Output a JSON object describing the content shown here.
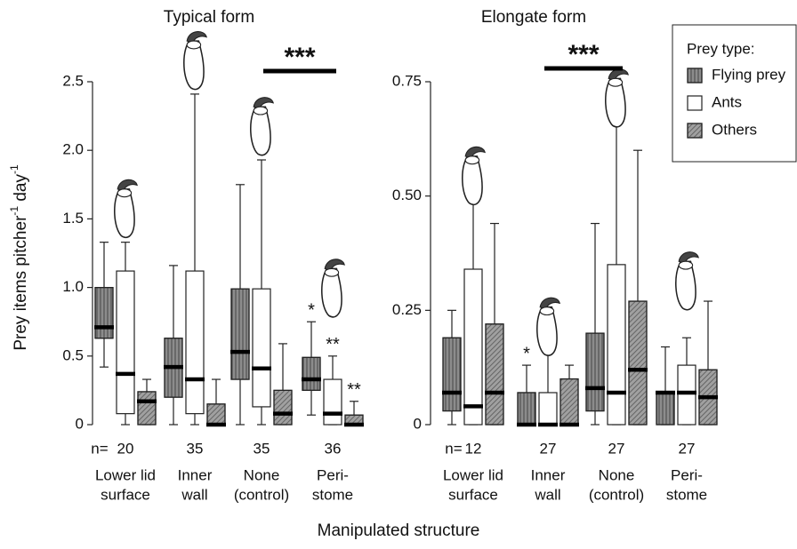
{
  "xlabel": "Manipulated structure",
  "ylabel": [
    "Prey items pitcher",
    "-1",
    " day",
    "-1"
  ],
  "legend": {
    "title": "Prey type:",
    "series": [
      {
        "name": "Flying prey",
        "color": "#8c8c8c",
        "pattern": "vertical"
      },
      {
        "name": "Ants",
        "color": "#ffffff",
        "pattern": "none"
      },
      {
        "name": "Others",
        "color": "#a0a0a0",
        "pattern": "diagonal"
      }
    ]
  },
  "chart_data": [
    {
      "type": "box",
      "title": "Typical form",
      "n_label": "n=",
      "n": [
        20,
        35,
        35,
        36
      ],
      "categories": [
        [
          "Lower lid",
          "surface"
        ],
        [
          "Inner",
          "wall"
        ],
        [
          "None",
          "(control)"
        ],
        [
          "Peri-",
          "stome"
        ]
      ],
      "ylim": [
        0,
        2.5
      ],
      "yticks": [
        0,
        0.5,
        {
          "value": 1,
          "label": "1.0"
        },
        1.5,
        {
          "value": 2,
          "label": "2.0"
        },
        2.5
      ],
      "significance": "***",
      "series": [
        {
          "boxes": [
            {
              "min": 0.42,
              "q1": 0.63,
              "median": 0.71,
              "q3": 1.0,
              "max": 1.33
            },
            {
              "min": 0,
              "q1": 0.2,
              "median": 0.42,
              "q3": 0.63,
              "max": 1.16
            },
            {
              "min": 0,
              "q1": 0.33,
              "median": 0.53,
              "q3": 0.99,
              "max": 1.75
            },
            {
              "min": 0.07,
              "q1": 0.25,
              "median": 0.33,
              "q3": 0.49,
              "max": 0.75
            }
          ],
          "marks": [
            null,
            null,
            null,
            "*"
          ]
        },
        {
          "boxes": [
            {
              "min": 0,
              "q1": 0.08,
              "median": 0.37,
              "q3": 1.12,
              "max": 1.33
            },
            {
              "min": 0,
              "q1": 0.08,
              "median": 0.33,
              "q3": 1.12,
              "max": 2.41
            },
            {
              "min": 0,
              "q1": 0.13,
              "median": 0.41,
              "q3": 0.99,
              "max": 1.93
            },
            {
              "min": 0,
              "q1": 0,
              "median": 0.08,
              "q3": 0.33,
              "max": 0.5
            }
          ],
          "marks": [
            null,
            null,
            null,
            "**"
          ]
        },
        {
          "boxes": [
            {
              "min": 0,
              "q1": 0,
              "median": 0.17,
              "q3": 0.24,
              "max": 0.33
            },
            {
              "min": 0,
              "q1": 0,
              "median": 0,
              "q3": 0.15,
              "max": 0.33
            },
            {
              "min": 0,
              "q1": 0,
              "median": 0.08,
              "q3": 0.25,
              "max": 0.59
            },
            {
              "min": 0,
              "q1": 0,
              "median": 0,
              "q3": 0.07,
              "max": 0.17
            }
          ],
          "marks": [
            null,
            null,
            null,
            "**"
          ]
        }
      ]
    },
    {
      "type": "box",
      "title": "Elongate form",
      "n_label": "n=",
      "n": [
        12,
        27,
        27,
        27
      ],
      "categories": [
        [
          "Lower lid",
          "surface"
        ],
        [
          "Inner",
          "wall"
        ],
        [
          "None",
          "(control)"
        ],
        [
          "Peri-",
          "stome"
        ]
      ],
      "ylim": [
        0,
        0.75
      ],
      "yticks": [
        0,
        0.25,
        {
          "value": 0.5,
          "label": "0.50"
        },
        0.75
      ],
      "significance": "***",
      "series": [
        {
          "boxes": [
            {
              "min": 0,
              "q1": 0.03,
              "median": 0.07,
              "q3": 0.19,
              "max": 0.25
            },
            {
              "min": 0,
              "q1": 0,
              "median": 0,
              "q3": 0.07,
              "max": 0.13
            },
            {
              "min": 0,
              "q1": 0.03,
              "median": 0.08,
              "q3": 0.2,
              "max": 0.44
            },
            {
              "min": 0,
              "q1": 0,
              "median": 0.07,
              "q3": 0.07,
              "max": 0.17
            }
          ],
          "marks": [
            null,
            "*",
            null,
            null
          ]
        },
        {
          "boxes": [
            {
              "min": 0,
              "q1": 0,
              "median": 0.04,
              "q3": 0.34,
              "max": 0.5
            },
            {
              "min": 0,
              "q1": 0,
              "median": 0,
              "q3": 0.07,
              "max": 0.17
            },
            {
              "min": 0,
              "q1": 0,
              "median": 0.07,
              "q3": 0.35,
              "max": 0.67
            },
            {
              "min": 0,
              "q1": 0,
              "median": 0.07,
              "q3": 0.13,
              "max": 0.19
            }
          ],
          "marks": [
            null,
            "*",
            null,
            null
          ]
        },
        {
          "boxes": [
            {
              "min": 0,
              "q1": 0,
              "median": 0.07,
              "q3": 0.22,
              "max": 0.44
            },
            {
              "min": 0,
              "q1": 0,
              "median": 0,
              "q3": 0.1,
              "max": 0.13
            },
            {
              "min": 0,
              "q1": 0,
              "median": 0.12,
              "q3": 0.27,
              "max": 0.6
            },
            {
              "min": 0,
              "q1": 0,
              "median": 0.06,
              "q3": 0.12,
              "max": 0.27
            }
          ],
          "marks": [
            null,
            null,
            null,
            null
          ]
        }
      ]
    }
  ]
}
